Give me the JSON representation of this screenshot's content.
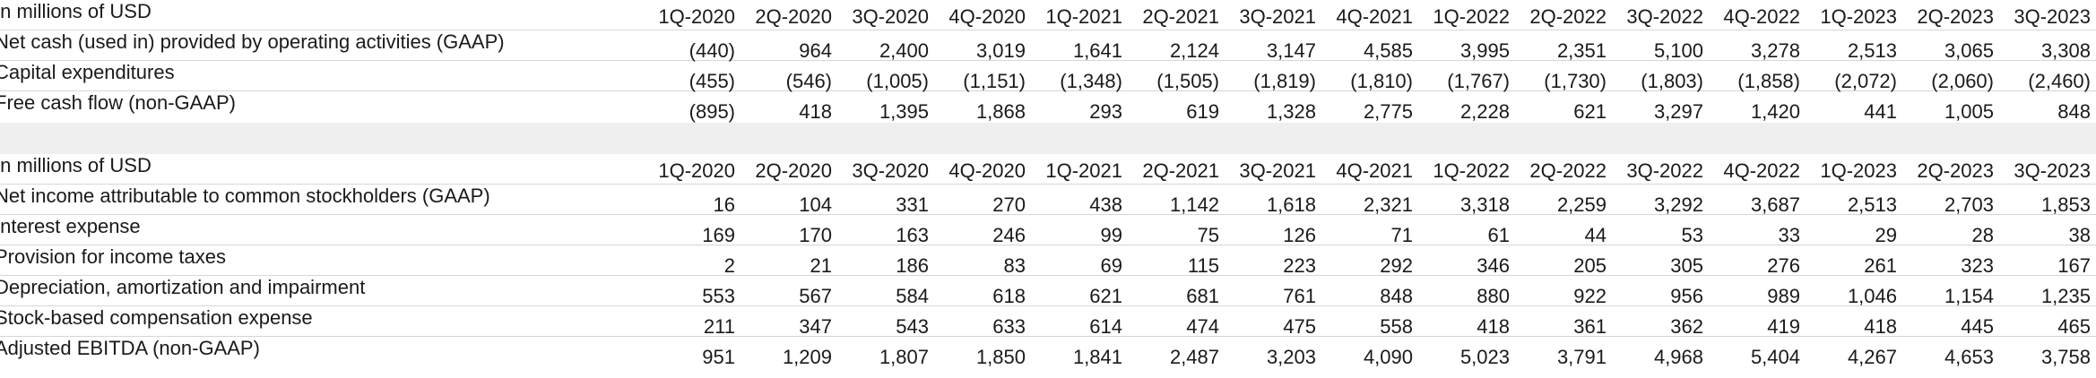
{
  "fcf_table": {
    "unit_label": "In millions of USD",
    "columns": [
      "1Q-2020",
      "2Q-2020",
      "3Q-2020",
      "4Q-2020",
      "1Q-2021",
      "2Q-2021",
      "3Q-2021",
      "4Q-2021",
      "1Q-2022",
      "2Q-2022",
      "3Q-2022",
      "4Q-2022",
      "1Q-2023",
      "2Q-2023",
      "3Q-2023"
    ],
    "rows": [
      {
        "label": "Net cash (used in) provided by operating activities (GAAP)",
        "values": [
          "(440)",
          "964",
          "2,400",
          "3,019",
          "1,641",
          "2,124",
          "3,147",
          "4,585",
          "3,995",
          "2,351",
          "5,100",
          "3,278",
          "2,513",
          "3,065",
          "3,308"
        ]
      },
      {
        "label": "Capital expenditures",
        "values": [
          "(455)",
          "(546)",
          "(1,005)",
          "(1,151)",
          "(1,348)",
          "(1,505)",
          "(1,819)",
          "(1,810)",
          "(1,767)",
          "(1,730)",
          "(1,803)",
          "(1,858)",
          "(2,072)",
          "(2,060)",
          "(2,460)"
        ]
      },
      {
        "label": "Free cash flow (non-GAAP)",
        "values": [
          "(895)",
          "418",
          "1,395",
          "1,868",
          "293",
          "619",
          "1,328",
          "2,775",
          "2,228",
          "621",
          "3,297",
          "1,420",
          "441",
          "1,005",
          "848"
        ]
      }
    ]
  },
  "ebitda_table": {
    "unit_label": "In millions of USD",
    "columns": [
      "1Q-2020",
      "2Q-2020",
      "3Q-2020",
      "4Q-2020",
      "1Q-2021",
      "2Q-2021",
      "3Q-2021",
      "4Q-2021",
      "1Q-2022",
      "2Q-2022",
      "3Q-2022",
      "4Q-2022",
      "1Q-2023",
      "2Q-2023",
      "3Q-2023"
    ],
    "rows": [
      {
        "label": "Net income attributable to common stockholders (GAAP)",
        "values": [
          "16",
          "104",
          "331",
          "270",
          "438",
          "1,142",
          "1,618",
          "2,321",
          "3,318",
          "2,259",
          "3,292",
          "3,687",
          "2,513",
          "2,703",
          "1,853"
        ]
      },
      {
        "label": "Interest expense",
        "values": [
          "169",
          "170",
          "163",
          "246",
          "99",
          "75",
          "126",
          "71",
          "61",
          "44",
          "53",
          "33",
          "29",
          "28",
          "38"
        ]
      },
      {
        "label": "Provision for income taxes",
        "values": [
          "2",
          "21",
          "186",
          "83",
          "69",
          "115",
          "223",
          "292",
          "346",
          "205",
          "305",
          "276",
          "261",
          "323",
          "167"
        ]
      },
      {
        "label": "Depreciation, amortization and impairment",
        "values": [
          "553",
          "567",
          "584",
          "618",
          "621",
          "681",
          "761",
          "848",
          "880",
          "922",
          "956",
          "989",
          "1,046",
          "1,154",
          "1,235"
        ]
      },
      {
        "label": "Stock-based compensation expense",
        "values": [
          "211",
          "347",
          "543",
          "633",
          "614",
          "474",
          "475",
          "558",
          "418",
          "361",
          "362",
          "419",
          "418",
          "445",
          "465"
        ]
      },
      {
        "label": "Adjusted EBITDA (non-GAAP)",
        "values": [
          "951",
          "1,209",
          "1,807",
          "1,850",
          "1,841",
          "2,487",
          "3,203",
          "4,090",
          "5,023",
          "3,791",
          "4,968",
          "5,404",
          "4,267",
          "4,653",
          "3,758"
        ]
      }
    ]
  }
}
